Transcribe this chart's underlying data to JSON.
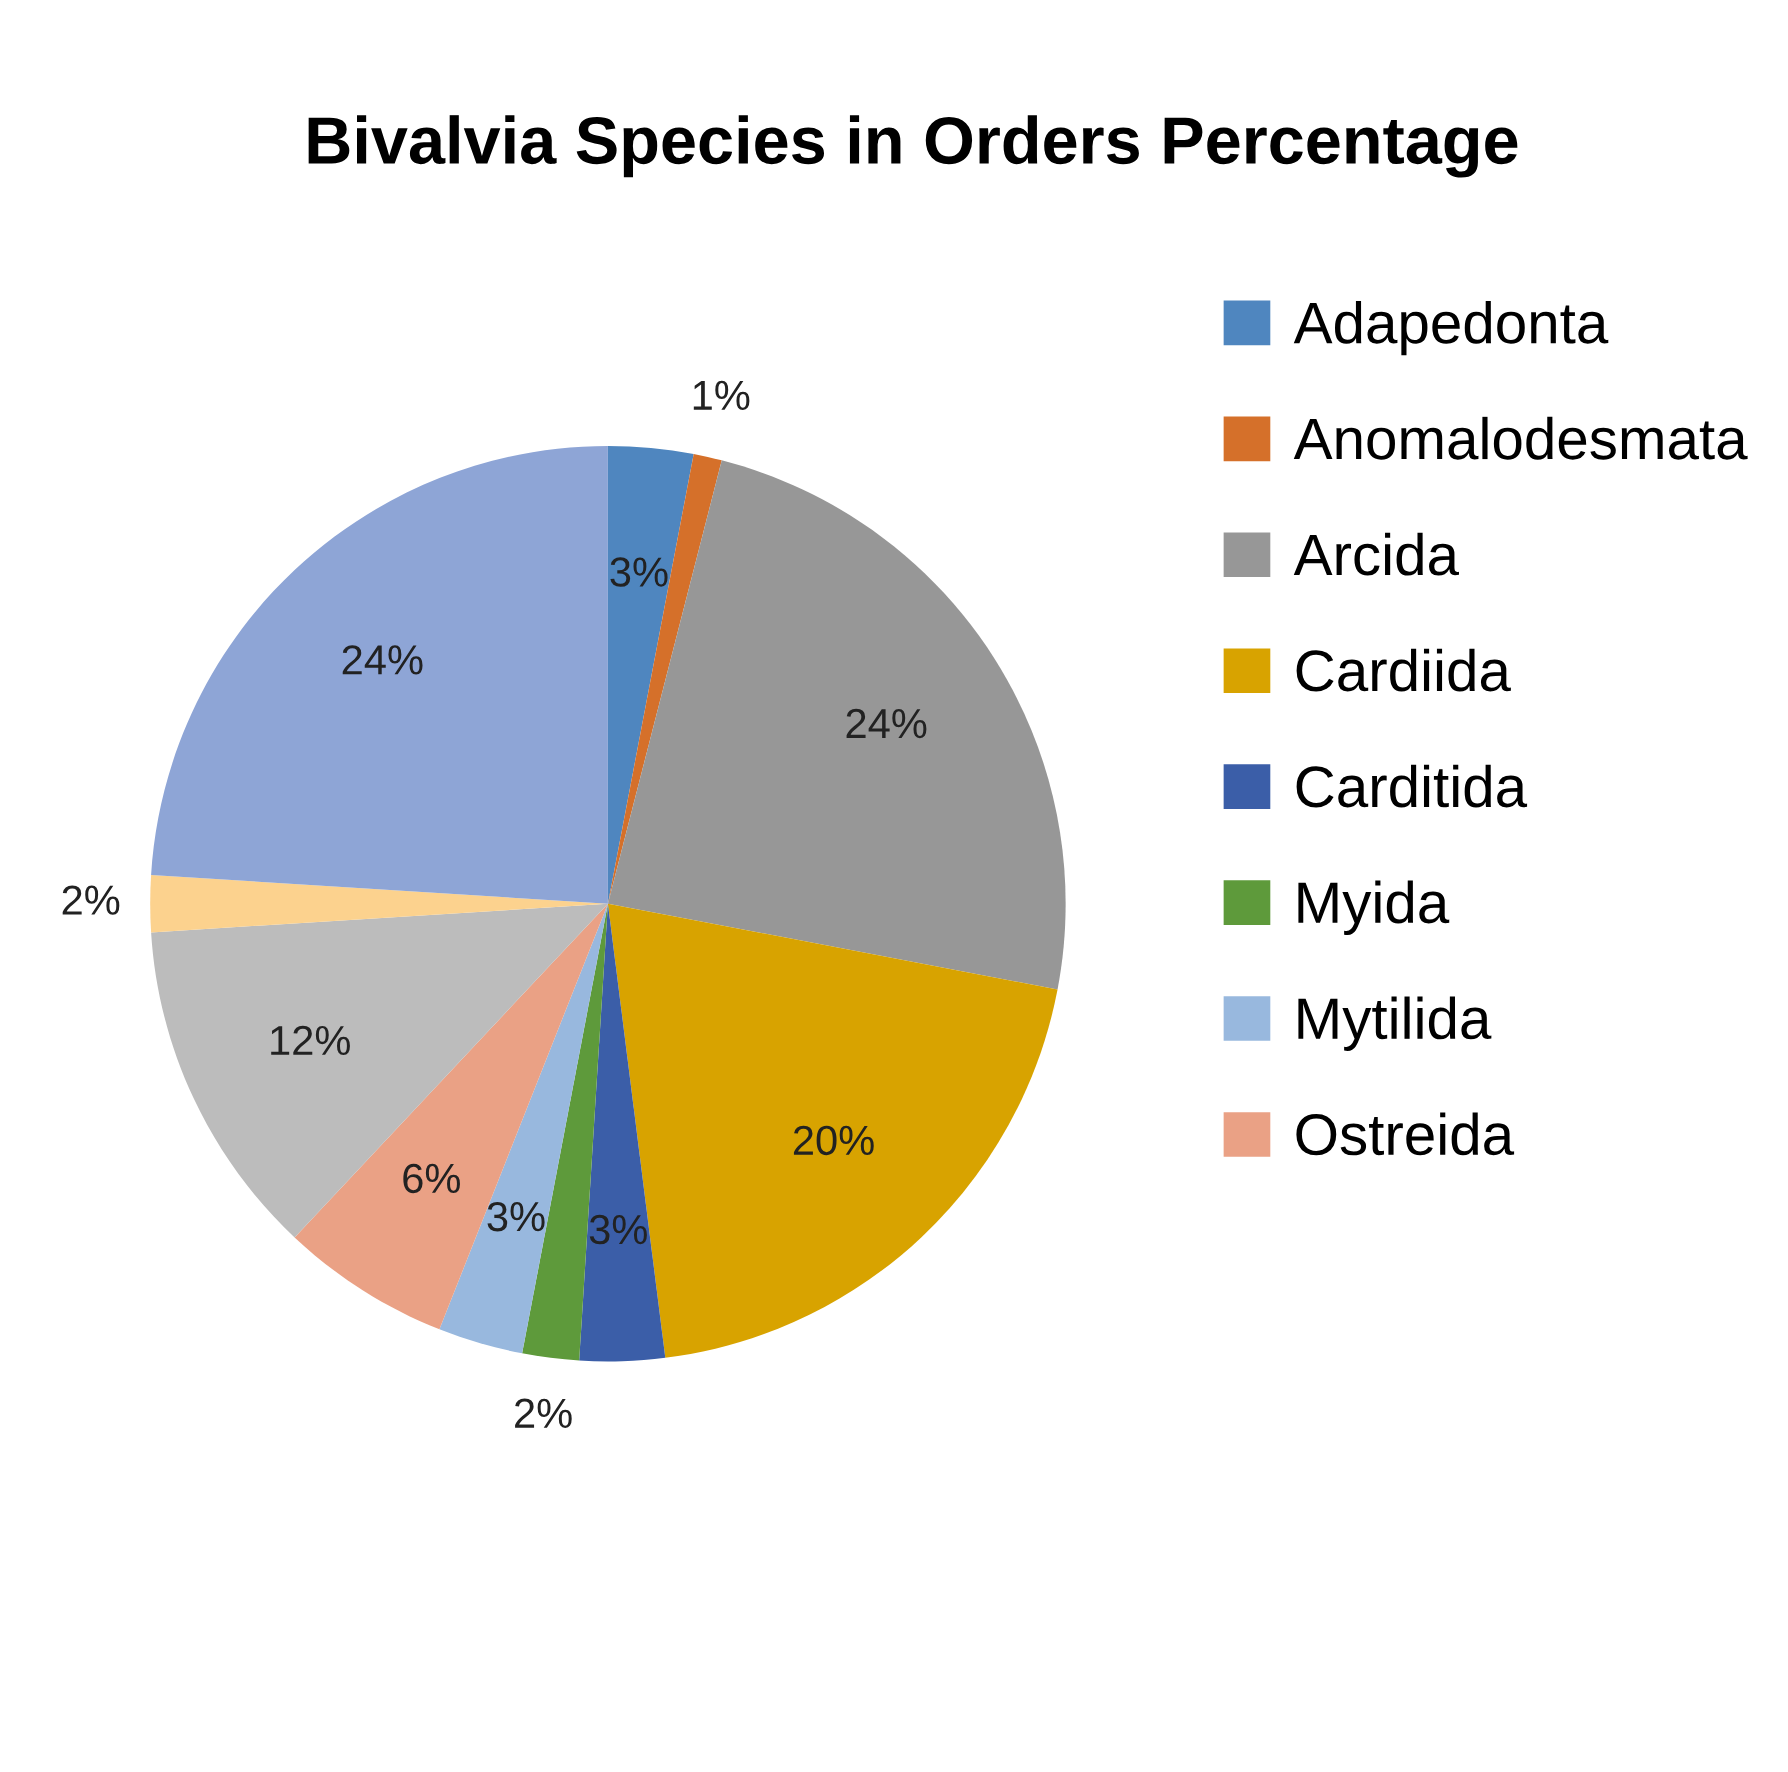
{
  "chart_data": {
    "type": "pie",
    "title": "Bivalvia Species in Orders Percentage",
    "categories": [
      "Adapedonta",
      "Anomalodesmata",
      "Arcida",
      "Cardiida",
      "Carditida",
      "Myida",
      "Mytilida",
      "Ostreida",
      null,
      null,
      null
    ],
    "values": [
      3,
      1,
      24,
      20,
      3,
      2,
      3,
      6,
      12,
      2,
      24
    ],
    "colors": [
      "#4f86bf",
      "#d5702a",
      "#979797",
      "#d8a300",
      "#3b5ea8",
      "#5e9a3b",
      "#98b8de",
      "#eaa185",
      "#bcbcbc",
      "#fcd28e",
      "#8ea5d6"
    ],
    "value_labels": [
      "3%",
      "1%",
      "24%",
      "20%",
      "3%",
      "2%",
      "3%",
      "6%",
      "12%",
      "2%",
      "24%"
    ],
    "legend": "right"
  }
}
